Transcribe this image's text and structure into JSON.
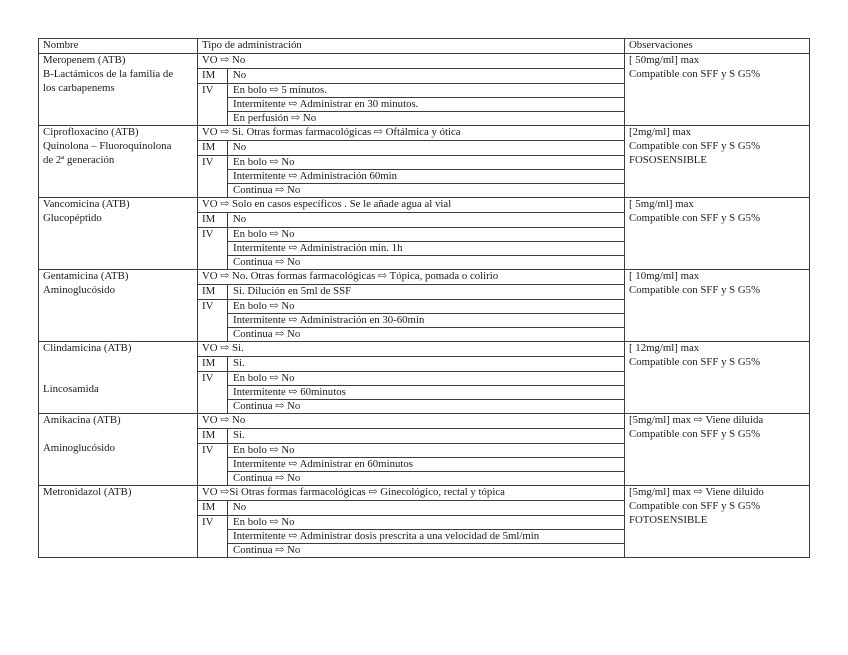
{
  "table": {
    "headers": [
      "Nombre",
      "Tipo de administración",
      "Observaciones"
    ],
    "admin_labels": {
      "im": "IM",
      "iv": "IV"
    },
    "rows": [
      {
        "name_lines": [
          "Meropenem (ATB)",
          "B-Lactámicos de la familia de",
          "los carbapenems",
          ""
        ],
        "vo": "VO ⇨ No",
        "im": "No",
        "iv_lines": [
          "En bolo ⇨ 5 minutos.",
          "Intermitente ⇨ Administrar en 30 minutos.",
          "En perfusión ⇨ No"
        ],
        "obs_lines": [
          "[ 50mg/ml] max",
          "Compatible con SFF y S G5%",
          ""
        ]
      },
      {
        "name_lines": [
          "Ciprofloxacino (ATB)",
          "Quinolona – Fluoroquinolona",
          "de 2ª generación",
          ""
        ],
        "vo": "VO ⇨ Si. Otras formas farmacológicas  ⇨ Oftálmica y ótica",
        "im": "No",
        "iv_lines": [
          "En bolo ⇨ No",
          "Intermitente ⇨ Administración 60min",
          "Continua ⇨ No"
        ],
        "obs_lines": [
          "[2mg/ml] max",
          "Compatible con SFF y S G5%",
          "FOSOSENSIBLE"
        ]
      },
      {
        "name_lines": [
          "Vancomicina (ATB)",
          "Glucopéptido",
          "",
          ""
        ],
        "vo": "VO ⇨ Solo en casos específicos . Se le añade agua al vial",
        "im": "No",
        "iv_lines": [
          "En bolo ⇨ No",
          "Intermitente ⇨ Administración min. 1h",
          "Continua ⇨ No"
        ],
        "obs_lines": [
          "[ 5mg/ml] max",
          "Compatible con SFF y S G5%",
          ""
        ]
      },
      {
        "name_lines": [
          "Gentamicina (ATB)",
          "Aminoglucósido",
          "",
          ""
        ],
        "vo": "VO ⇨ No. Otras formas farmacológicas  ⇨ Tópica, pomada o colirio",
        "im": "Si. Dilución en 5ml de SSF",
        "iv_lines": [
          "En bolo ⇨ No",
          "Intermitente ⇨ Administración en 30-60min",
          "Continua ⇨ No"
        ],
        "obs_lines": [
          "[ 10mg/ml] max",
          "Compatible con SFF y S G5%",
          ""
        ]
      },
      {
        "name_lines": [
          "Clindamicina (ATB)",
          "",
          "",
          "Lincosamida"
        ],
        "vo": "VO ⇨ Si.",
        "im": "Si.",
        "iv_lines": [
          "En bolo ⇨ No",
          "Intermitente ⇨ 60minutos",
          "Continua ⇨ No"
        ],
        "obs_lines": [
          "[ 12mg/ml] max",
          "Compatible con SFF y S G5%",
          ""
        ]
      },
      {
        "name_lines": [
          "Amikacina (ATB)",
          "",
          "Aminoglucósido",
          ""
        ],
        "vo": "VO ⇨ No",
        "im": "Si.",
        "iv_lines": [
          "En bolo ⇨ No",
          "Intermitente ⇨ Administrar en 60minutos",
          "Continua ⇨ No"
        ],
        "obs_lines": [
          "[5mg/ml] max ⇨ Viene diluida",
          "Compatible con SFF y S G5%",
          ""
        ]
      },
      {
        "name_lines": [
          "Metronidazol (ATB)",
          "",
          "",
          ""
        ],
        "vo": "VO ⇨Si Otras formas farmacológicas  ⇨ Ginecológico, rectal y tópica",
        "im": "No",
        "iv_lines": [
          "En bolo ⇨ No",
          "Intermitente ⇨ Administrar dosis prescrita a una velocidad de 5ml/min",
          "Continua ⇨ No"
        ],
        "obs_lines": [
          "[5mg/ml] max ⇨ Viene diluido",
          "Compatible con SFF y S G5%",
          "FOTOSENSIBLE"
        ]
      }
    ]
  }
}
